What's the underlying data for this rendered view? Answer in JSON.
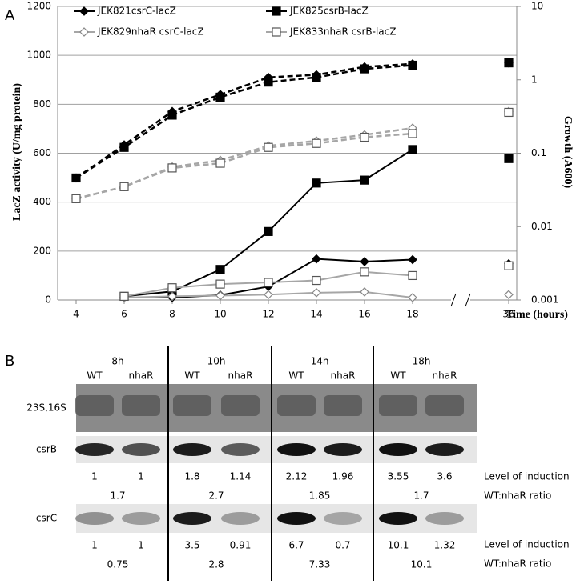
{
  "chart_data": {
    "type": "line",
    "panel_label": "A",
    "x_label": "Time (hours)",
    "y_label": "LacZ activity (U/mg protein)",
    "y2_label": "Growth (A600)",
    "categories": [
      "4",
      "6",
      "8",
      "10",
      "12",
      "14",
      "16",
      "18",
      null,
      "36"
    ],
    "ylim": [
      0,
      1200
    ],
    "yticks": [
      0,
      200,
      400,
      600,
      800,
      1000,
      1200
    ],
    "y2lim": [
      0.001,
      10
    ],
    "y2ticks": [
      0.001,
      0.01,
      0.1,
      1,
      10
    ],
    "y2scale": "log",
    "grid": true,
    "series": [
      {
        "name": "JEK821csrC-lacZ",
        "color": "#000000",
        "marker": "diamond",
        "filled": true,
        "dashed": false,
        "values": [
          null,
          10,
          10,
          20,
          55,
          168,
          157,
          165,
          null,
          148
        ]
      },
      {
        "name": "JEK825csrB-lacZ",
        "color": "#000000",
        "marker": "square",
        "filled": true,
        "dashed": false,
        "values": [
          null,
          15,
          35,
          125,
          280,
          478,
          490,
          615,
          null,
          578
        ]
      },
      {
        "name": "JEK829nhaR csrC-lacZ",
        "color": "#a6a6a6",
        "marker": "diamond",
        "filled": false,
        "dashed": false,
        "values": [
          null,
          10,
          15,
          18,
          22,
          30,
          33,
          10,
          null,
          22
        ]
      },
      {
        "name": "JEK833nhaR csrB-lacZ",
        "color": "#a6a6a6",
        "marker": "square",
        "filled": false,
        "dashed": false,
        "values": [
          null,
          15,
          50,
          65,
          72,
          80,
          115,
          100,
          null,
          140
        ]
      },
      {
        "name": "JEK821csrC-lacZ",
        "axis": "y2",
        "color": "#000000",
        "marker": "diamond",
        "filled": true,
        "dashed": true,
        "values": [
          0.046,
          0.13,
          0.37,
          0.63,
          1.08,
          1.17,
          1.5,
          1.65,
          null,
          1.7
        ]
      },
      {
        "name": "JEK825csrB-lacZ",
        "axis": "y2",
        "color": "#000000",
        "marker": "square",
        "filled": true,
        "dashed": true,
        "values": [
          0.046,
          0.12,
          0.33,
          0.58,
          0.93,
          1.08,
          1.41,
          1.58,
          null,
          1.7
        ]
      },
      {
        "name": "JEK829nhaR csrC-lacZ",
        "axis": "y2",
        "color": "#a6a6a6",
        "marker": "diamond",
        "filled": false,
        "dashed": true,
        "values": [
          0.024,
          0.035,
          0.065,
          0.08,
          0.126,
          0.147,
          0.178,
          0.22,
          null,
          0.37
        ]
      },
      {
        "name": "JEK833nhaR csrB-lacZ",
        "axis": "y2",
        "color": "#a6a6a6",
        "marker": "square",
        "filled": false,
        "dashed": true,
        "values": [
          0.024,
          0.035,
          0.063,
          0.073,
          0.12,
          0.136,
          0.165,
          0.185,
          null,
          0.36
        ]
      }
    ]
  },
  "blot": {
    "panel_label": "B",
    "timepoints": [
      "8h",
      "10h",
      "14h",
      "18h"
    ],
    "lanes": [
      "WT",
      "nhaR",
      "WT",
      "nhaR",
      "WT",
      "nhaR",
      "WT",
      "nhaR"
    ],
    "induction_label": "Level of induction",
    "ratio_label": "WT:nhaR ratio",
    "rows": [
      {
        "label": "23S,16S"
      },
      {
        "label": "csrB",
        "induction": [
          1,
          1,
          1.8,
          1.14,
          2.12,
          1.96,
          3.55,
          3.6
        ],
        "ratio": [
          1.7,
          2.7,
          1.85,
          1.7
        ]
      },
      {
        "label": "csrC",
        "induction": [
          1,
          1,
          3.5,
          0.91,
          6.7,
          0.7,
          10.1,
          1.32
        ],
        "ratio": [
          0.75,
          2.8,
          7.33,
          10.1
        ]
      }
    ]
  }
}
